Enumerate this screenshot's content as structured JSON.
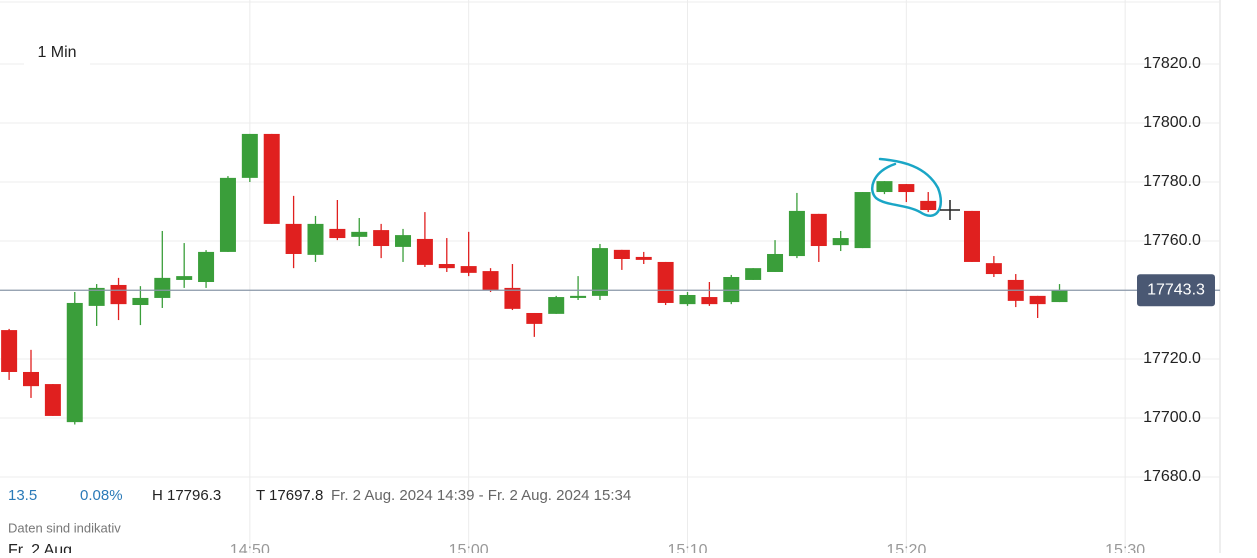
{
  "chart_data": {
    "type": "candlestick",
    "interval": "1 Min",
    "x": [
      "14:39",
      "14:40",
      "14:41",
      "14:42",
      "14:43",
      "14:44",
      "14:45",
      "14:46",
      "14:47",
      "14:48",
      "14:49",
      "14:50",
      "14:51",
      "14:52",
      "14:53",
      "14:54",
      "14:55",
      "14:56",
      "14:57",
      "14:58",
      "14:59",
      "15:00",
      "15:01",
      "15:02",
      "15:03",
      "15:04",
      "15:05",
      "15:06",
      "15:07",
      "15:08",
      "15:09",
      "15:10",
      "15:11",
      "15:12",
      "15:13",
      "15:14",
      "15:15",
      "15:16",
      "15:17",
      "15:18",
      "15:19",
      "15:20",
      "15:21",
      "15:23",
      "15:24",
      "15:25",
      "15:26",
      "15:27"
    ],
    "open": [
      17729.8,
      17715.6,
      17711.5,
      17698.6,
      17738.0,
      17745.1,
      17738.3,
      17740.7,
      17746.8,
      17746.1,
      17756.3,
      17781.4,
      17796.3,
      17765.8,
      17755.3,
      17764.1,
      17761.4,
      17763.7,
      17758.0,
      17760.7,
      17752.2,
      17751.5,
      17749.8,
      17744.1,
      17735.6,
      17735.3,
      17740.7,
      17741.4,
      17757.0,
      17754.6,
      17752.9,
      17738.6,
      17741.0,
      17739.3,
      17746.8,
      17749.5,
      17754.9,
      17769.2,
      17758.6,
      17757.6,
      17776.6,
      17779.3,
      17773.6,
      17770.2,
      17752.5,
      17746.8,
      17741.4,
      17739.3
    ],
    "high": [
      17730.2,
      17723.1,
      17711.5,
      17742.7,
      17745.4,
      17747.5,
      17744.7,
      17763.4,
      17759.3,
      17756.9,
      17782.0,
      17796.3,
      17796.3,
      17775.3,
      17768.5,
      17773.9,
      17767.8,
      17765.8,
      17764.1,
      17769.8,
      17761.0,
      17763.1,
      17750.8,
      17752.2,
      17735.6,
      17741.4,
      17748.1,
      17759.0,
      17757.0,
      17756.3,
      17752.9,
      17742.7,
      17746.1,
      17748.5,
      17750.8,
      17760.3,
      17776.3,
      17769.2,
      17763.4,
      17776.6,
      17780.3,
      17779.3,
      17776.6,
      17770.2,
      17754.9,
      17748.8,
      17741.4,
      17745.4
    ],
    "low": [
      17712.9,
      17706.8,
      17700.7,
      17697.8,
      17731.2,
      17733.2,
      17731.5,
      17737.3,
      17744.1,
      17744.1,
      17756.3,
      17780.0,
      17765.8,
      17750.8,
      17752.9,
      17760.3,
      17758.3,
      17754.2,
      17752.9,
      17751.2,
      17749.5,
      17748.1,
      17742.7,
      17736.6,
      17727.5,
      17735.3,
      17740.0,
      17740.0,
      17750.2,
      17752.2,
      17738.3,
      17738.0,
      17738.0,
      17738.6,
      17746.8,
      17749.5,
      17754.2,
      17752.9,
      17756.6,
      17757.6,
      17775.9,
      17773.2,
      17769.8,
      17752.9,
      17747.8,
      17737.6,
      17733.9,
      17739.3
    ],
    "close": [
      17715.6,
      17710.8,
      17700.7,
      17739.0,
      17744.1,
      17738.6,
      17740.7,
      17747.5,
      17748.1,
      17756.3,
      17781.4,
      17796.3,
      17765.8,
      17755.6,
      17765.8,
      17761.0,
      17763.1,
      17758.3,
      17762.0,
      17751.9,
      17750.8,
      17749.2,
      17743.4,
      17737.0,
      17731.9,
      17741.0,
      17741.4,
      17757.6,
      17753.9,
      17753.6,
      17739.0,
      17741.7,
      17738.6,
      17747.8,
      17750.8,
      17755.6,
      17770.2,
      17758.3,
      17761.0,
      17776.6,
      17780.3,
      17776.6,
      17770.5,
      17752.9,
      17748.8,
      17739.7,
      17738.6,
      17743.4
    ],
    "up_color": "#3a9e3a",
    "down_color": "#e0201f",
    "xlim": [
      "14:38:35",
      "15:34:20"
    ],
    "xticks": [
      "14:50",
      "15:00",
      "15:10",
      "15:20",
      "15:30"
    ],
    "date_label": "Fr. 2 Aug",
    "ylim": [
      17666.1,
      17841.7
    ],
    "yticks": [
      {
        "value": 17680,
        "label": "17680.0"
      },
      {
        "value": 17700,
        "label": "17700.0"
      },
      {
        "value": 17720,
        "label": "17720.0"
      },
      {
        "value": 17760,
        "label": "17760.0"
      },
      {
        "value": 17780,
        "label": "17780.0"
      },
      {
        "value": 17800,
        "label": "17800.0"
      },
      {
        "value": 17820,
        "label": "17820.0"
      }
    ],
    "last_price": 17743.3,
    "last_price_color": "#4a5873",
    "grid": true
  },
  "info": {
    "change": "13.5",
    "change_pct": "0.08%",
    "high": "H 17796.3",
    "low": "T 17697.8",
    "range": "Fr. 2 Aug. 2024 14:39 - Fr. 2 Aug. 2024 15:34",
    "note": "Daten sind indikativ"
  }
}
